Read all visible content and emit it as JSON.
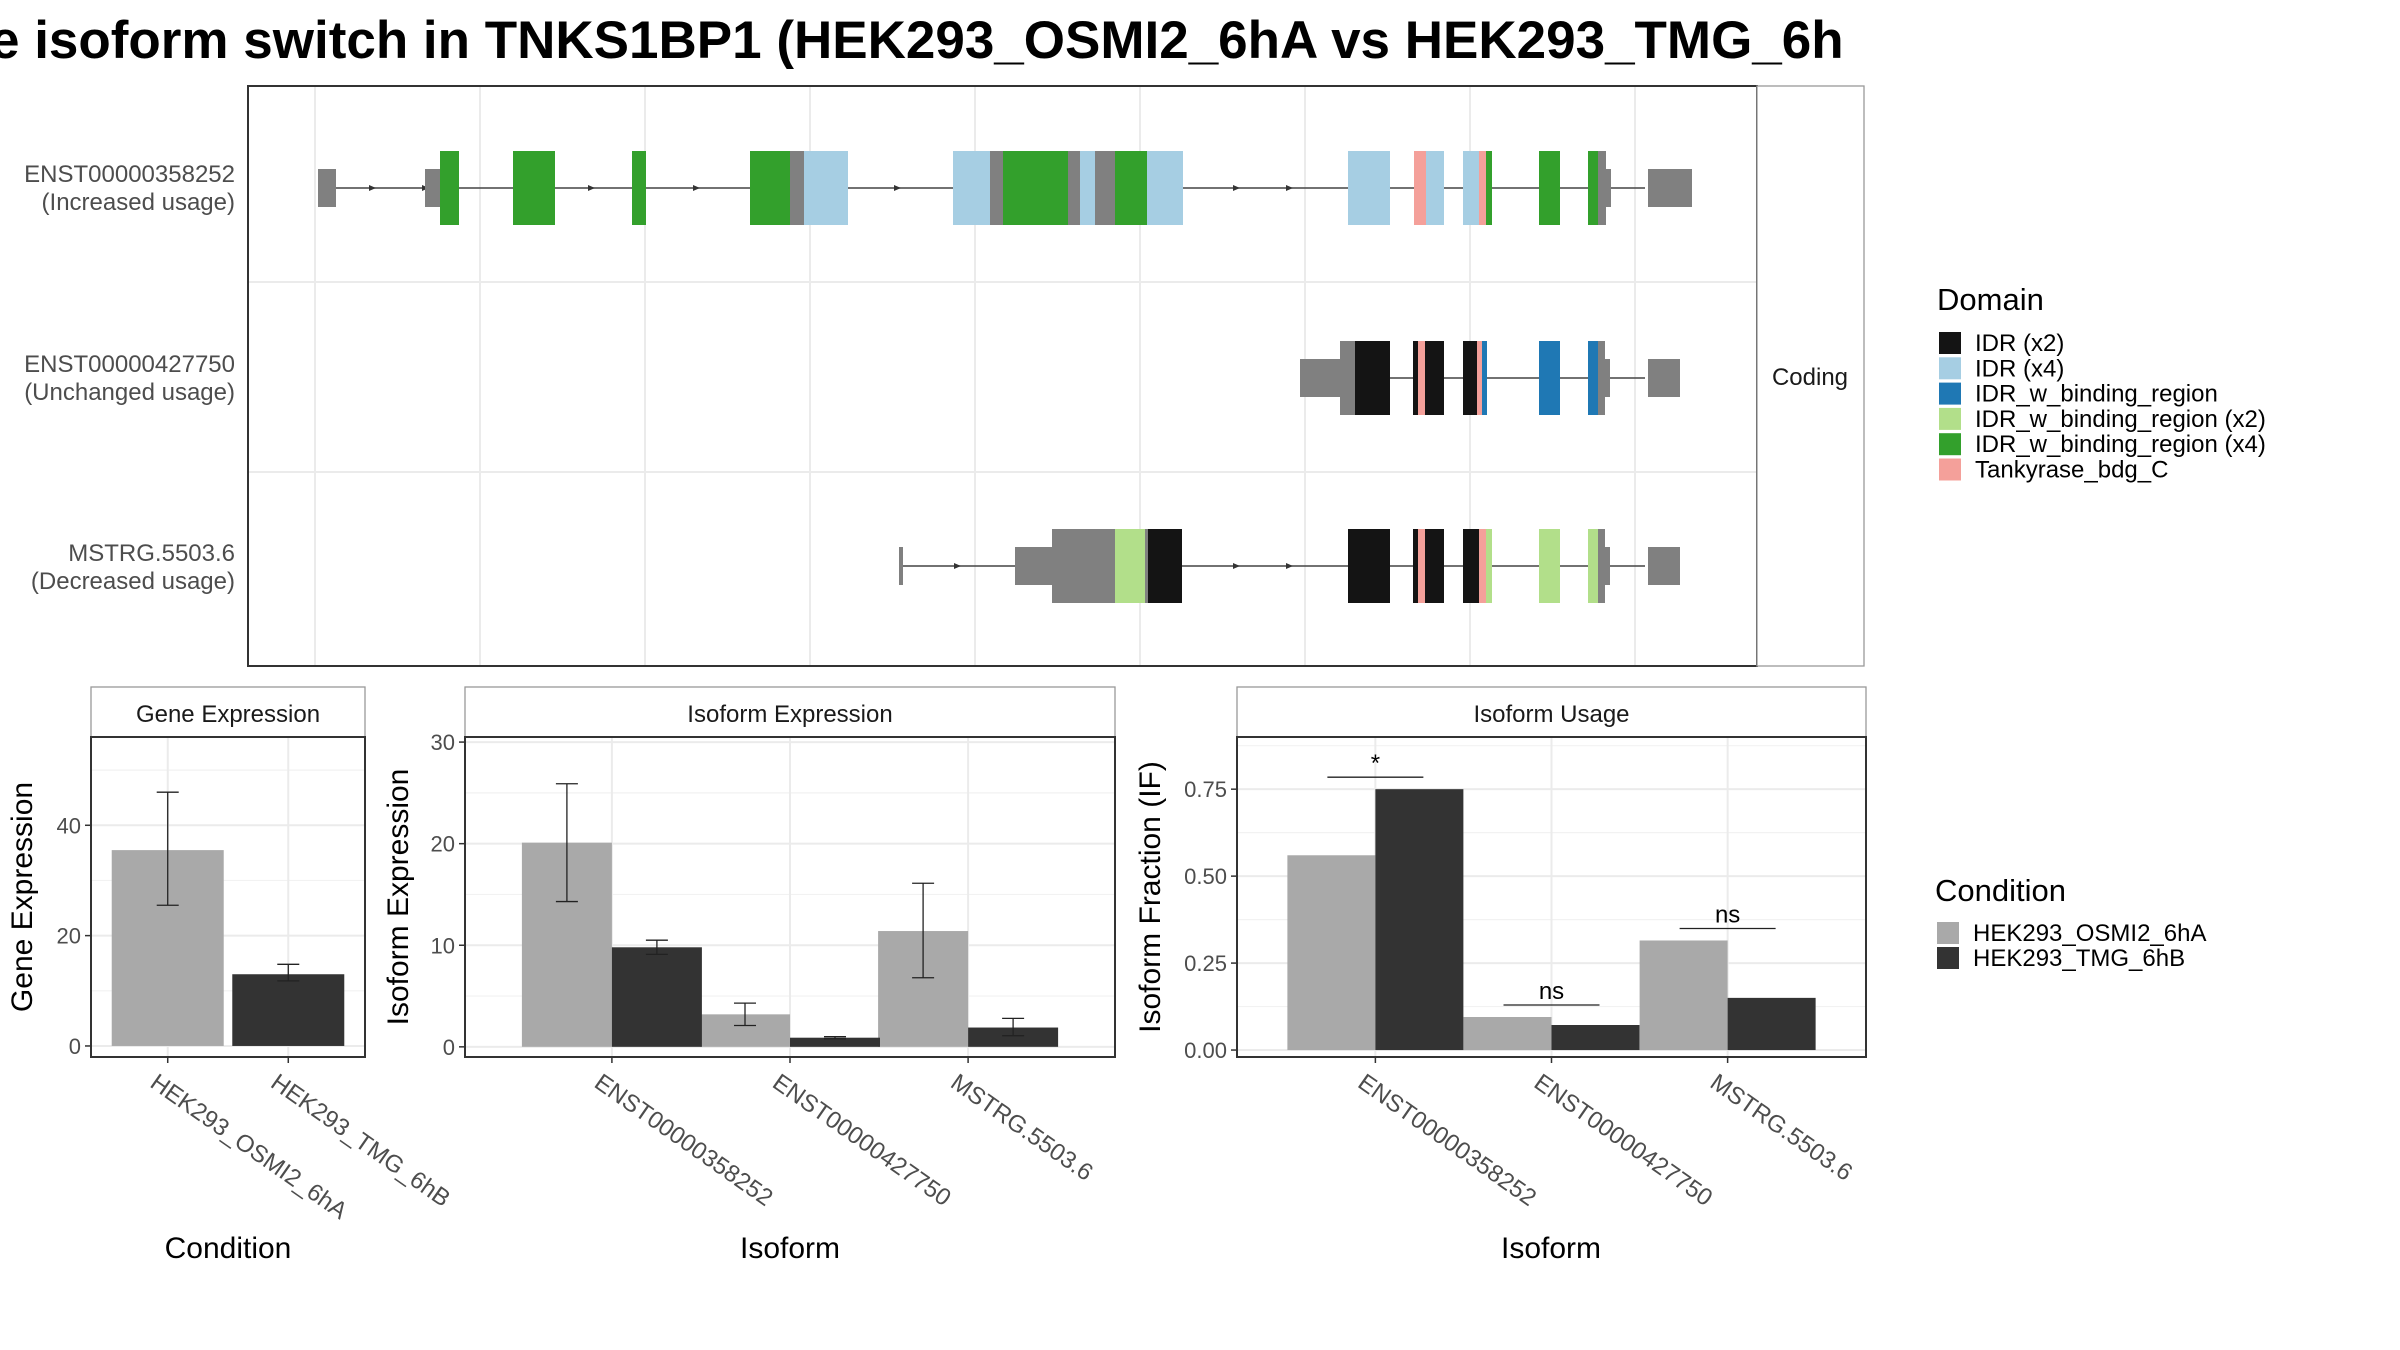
{
  "title": "e isoform switch in TNKS1BP1 (HEK293_OSMI2_6hA vs HEK293_TMG_6h",
  "colors": {
    "utr": "#808080",
    "IDR (x2)": "#141414",
    "IDR (x4)": "#a6cee3",
    "IDR_w_binding_region": "#1f78b4",
    "IDR_w_binding_region (x2)": "#b2df8a",
    "IDR_w_binding_region (x4)": "#33a02c",
    "Tankyrase_bdg_C": "#f4a09a",
    "cond1": "#a9a9a9",
    "cond2": "#333333"
  },
  "structure_panel": {
    "strip_label": "Coding",
    "transcripts": [
      {
        "id": "ENST00000358252",
        "usage": "(Increased usage)"
      },
      {
        "id": "ENST00000427750",
        "usage": "(Unchanged usage)"
      },
      {
        "id": "MSTRG.5503.6",
        "usage": "(Decreased usage)"
      }
    ]
  },
  "domain_legend": {
    "title": "Domain",
    "items": [
      "IDR (x2)",
      "IDR (x4)",
      "IDR_w_binding_region",
      "IDR_w_binding_region (x2)",
      "IDR_w_binding_region (x4)",
      "Tankyrase_bdg_C"
    ]
  },
  "condition_legend": {
    "title": "Condition",
    "items": [
      "HEK293_OSMI2_6hA",
      "HEK293_TMG_6hB"
    ]
  },
  "chart_data": [
    {
      "type": "bar",
      "title": "Gene Expression",
      "xlabel": "Condition",
      "ylabel": "Gene Expression",
      "ylim": [
        -2,
        56
      ],
      "yticks": [
        0,
        20,
        40
      ],
      "categories": [
        "HEK293_OSMI2_6hA",
        "HEK293_TMG_6hB"
      ],
      "values": [
        35.5,
        13
      ],
      "error_low": [
        25.5,
        11.8
      ],
      "error_high": [
        46,
        14.8
      ]
    },
    {
      "type": "bar",
      "title": "Isoform Expression",
      "xlabel": "Isoform",
      "ylabel": "Isoform Expression",
      "ylim": [
        -1,
        30.5
      ],
      "yticks": [
        0,
        10,
        20,
        30
      ],
      "categories": [
        "ENST00000358252",
        "ENST00000427750",
        "MSTRG.5503.6"
      ],
      "series": [
        {
          "name": "HEK293_OSMI2_6hA",
          "values": [
            20.1,
            3.2,
            11.4
          ],
          "error_low": [
            14.3,
            2.1,
            6.8
          ],
          "error_high": [
            25.9,
            4.3,
            16.1
          ]
        },
        {
          "name": "HEK293_TMG_6hB",
          "values": [
            9.8,
            0.9,
            1.9
          ],
          "error_low": [
            9.1,
            0.8,
            1.1
          ],
          "error_high": [
            10.5,
            1.0,
            2.8
          ]
        }
      ]
    },
    {
      "type": "bar",
      "title": "Isoform Usage",
      "xlabel": "Isoform",
      "ylabel": "Isoform Fraction (IF)",
      "ylim": [
        -0.02,
        0.9
      ],
      "yticks": [
        0,
        0.25,
        0.5,
        0.75
      ],
      "ytick_labels": [
        "0.00",
        "0.25",
        "0.50",
        "0.75"
      ],
      "categories": [
        "ENST00000358252",
        "ENST00000427750",
        "MSTRG.5503.6"
      ],
      "series": [
        {
          "name": "HEK293_OSMI2_6hA",
          "values": [
            0.56,
            0.095,
            0.315
          ]
        },
        {
          "name": "HEK293_TMG_6hB",
          "values": [
            0.75,
            0.072,
            0.15
          ]
        }
      ],
      "significance": [
        "*",
        "ns",
        "ns"
      ]
    }
  ]
}
